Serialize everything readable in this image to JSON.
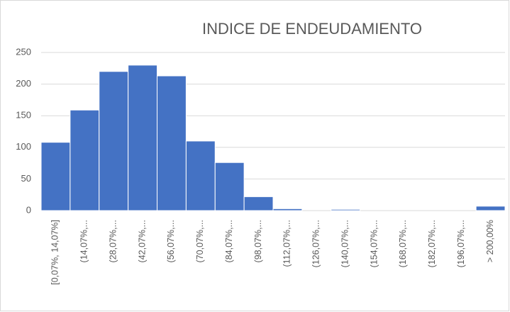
{
  "chart_data": {
    "type": "bar",
    "title": "INDICE DE ENDEUDAMIENTO",
    "categories": [
      "[0,07%, 14,07%]",
      "(14,07%,...",
      "(28,07%,...",
      "(42,07%,...",
      "(56,07%,...",
      "(70,07%,...",
      "(84,07%,...",
      "(98,07%,...",
      "(112,07%,...",
      "(126,07%,...",
      "(140,07%,...",
      "(154,07%,...",
      "(168,07%,...",
      "(182,07%,...",
      "(196,07%,...",
      "> 200,00%"
    ],
    "values": [
      108,
      159,
      220,
      230,
      213,
      110,
      76,
      22,
      3,
      0,
      2,
      0,
      0,
      0,
      0,
      7
    ],
    "color": "#4472c4",
    "ylim": [
      0,
      250
    ],
    "yticks": [
      0,
      50,
      100,
      150,
      200,
      250
    ],
    "grid": true
  }
}
